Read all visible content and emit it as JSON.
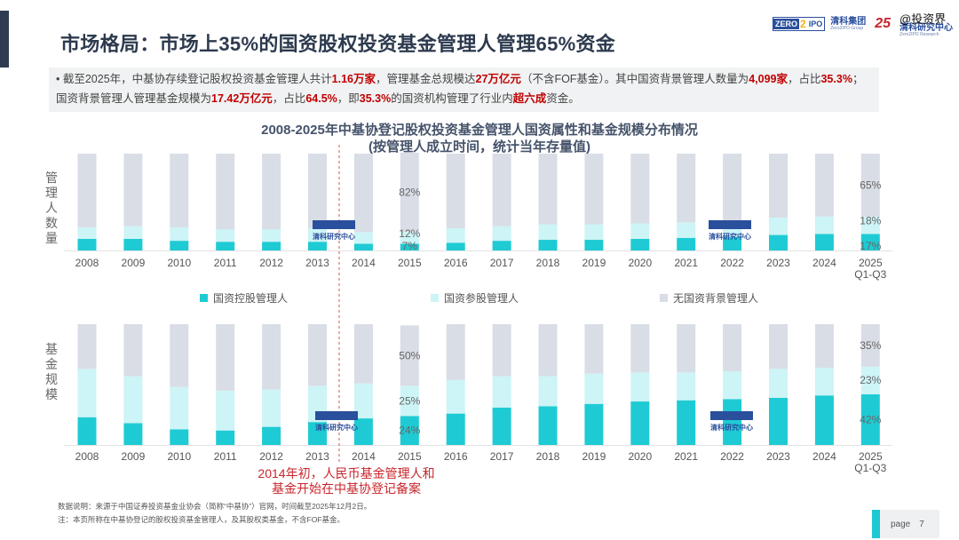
{
  "header": {
    "title": "市场格局：市场上35%的国资股权投资基金管理人管理65%资金",
    "logo_zero": "ZERO",
    "logo_two": "2",
    "logo_ipo": "IPO",
    "group_name": "清科集团",
    "group_en": "Zero2IPO Group",
    "anniversary": "25",
    "research_name": "清科研究中心",
    "research_en": "Zero2IPO Research",
    "watermark": "@投资界"
  },
  "bullet": {
    "parts": [
      {
        "t": "截至2025年，中基协存续登记股权投资基金管理人共计",
        "b": false
      },
      {
        "t": "1.16万家",
        "b": true
      },
      {
        "t": "，管理基金总规模达",
        "b": false
      },
      {
        "t": "27万亿元",
        "b": true
      },
      {
        "t": "（不含FOF基金）。其中国资背景管理人数量为",
        "b": false
      },
      {
        "t": "4,099家",
        "b": true
      },
      {
        "t": "，占比",
        "b": false
      },
      {
        "t": "35.3%",
        "b": true
      },
      {
        "t": "；国资背景管理人管理基金规模为",
        "b": false
      },
      {
        "t": "17.42万亿元",
        "b": true
      },
      {
        "t": "，占比",
        "b": false
      },
      {
        "t": "64.5%",
        "b": true
      },
      {
        "t": "，即",
        "b": false
      },
      {
        "t": "35.3%",
        "b": true
      },
      {
        "t": "的国资机构管理了行业内",
        "b": false
      },
      {
        "t": "超六成",
        "b": true
      },
      {
        "t": "资金。",
        "b": false
      }
    ]
  },
  "colors": {
    "controlled": "#1ecbd4",
    "participating": "#cdf4f6",
    "none": "#d9dde5",
    "annotation": "#c9252c"
  },
  "chart_data": [
    {
      "type": "bar",
      "stacked": true,
      "percent": true,
      "title": "2008-2025年中基协登记股权投资基金管理人国资属性和基金规模分布情况",
      "subtitle": "(按管理人成立时间，统计当年存量值)",
      "ylabel": "管理人数量",
      "categories": [
        "2008",
        "2009",
        "2010",
        "2011",
        "2012",
        "2013",
        "2014",
        "2015",
        "2016",
        "2017",
        "2018",
        "2019",
        "2020",
        "2021",
        "2022",
        "2023",
        "2024",
        "2025 Q1-Q3"
      ],
      "ylim": [
        0,
        100
      ],
      "series": [
        {
          "name": "国资控股管理人",
          "values": [
            12,
            12,
            10,
            9,
            9,
            9,
            7,
            7,
            8,
            10,
            11,
            11,
            12,
            13,
            14,
            16,
            17,
            17
          ]
        },
        {
          "name": "国资参股管理人",
          "values": [
            12,
            13,
            14,
            13,
            13,
            14,
            12,
            12,
            15,
            15,
            16,
            16,
            16,
            16,
            17,
            18,
            18,
            18
          ]
        },
        {
          "name": "无国资背景管理人",
          "values": [
            76,
            75,
            76,
            78,
            78,
            77,
            81,
            82,
            77,
            75,
            73,
            73,
            72,
            71,
            69,
            66,
            65,
            65
          ]
        }
      ],
      "data_labels": {
        "2015": [
          "7%",
          "12%",
          "82%"
        ],
        "2025 Q1-Q3": [
          "17%",
          "18%",
          "65%"
        ]
      }
    },
    {
      "type": "bar",
      "stacked": true,
      "percent": true,
      "ylabel": "基金规模",
      "categories": [
        "2008",
        "2009",
        "2010",
        "2011",
        "2012",
        "2013",
        "2014",
        "2015",
        "2016",
        "2017",
        "2018",
        "2019",
        "2020",
        "2021",
        "2022",
        "2023",
        "2024",
        "2025 Q1-Q3"
      ],
      "ylim": [
        0,
        100
      ],
      "series": [
        {
          "name": "国资控股管理人",
          "values": [
            23,
            18,
            13,
            12,
            15,
            19,
            22,
            24,
            26,
            31,
            32,
            34,
            36,
            37,
            38,
            39,
            41,
            42
          ]
        },
        {
          "name": "国资参股管理人",
          "values": [
            40,
            39,
            35,
            33,
            31,
            30,
            29,
            25,
            28,
            26,
            25,
            25,
            24,
            23,
            23,
            24,
            23,
            23
          ]
        },
        {
          "name": "无国资背景管理人",
          "values": [
            37,
            43,
            52,
            55,
            54,
            51,
            49,
            50,
            46,
            43,
            43,
            41,
            40,
            40,
            39,
            37,
            36,
            35
          ]
        }
      ],
      "data_labels": {
        "2015": [
          "24%",
          "25%",
          "50%"
        ],
        "2025 Q1-Q3": [
          "42%",
          "23%",
          "35%"
        ]
      }
    }
  ],
  "legend": [
    "国资控股管理人",
    "国资参股管理人",
    "无国资背景管理人"
  ],
  "annotation": {
    "line1": "2014年初，人民币基金管理人和",
    "line2": "基金开始在中基协登记备案"
  },
  "footer": {
    "source": "数据说明：来源于中国证券投资基金业协会（简称“中基协”）官网，时间截至2025年12月2日。",
    "note": "注：本页所称在中基协登记的股权投资基金管理人，及其股权类基金，不含FOF基金。",
    "page_label": "page",
    "page_number": "7"
  }
}
